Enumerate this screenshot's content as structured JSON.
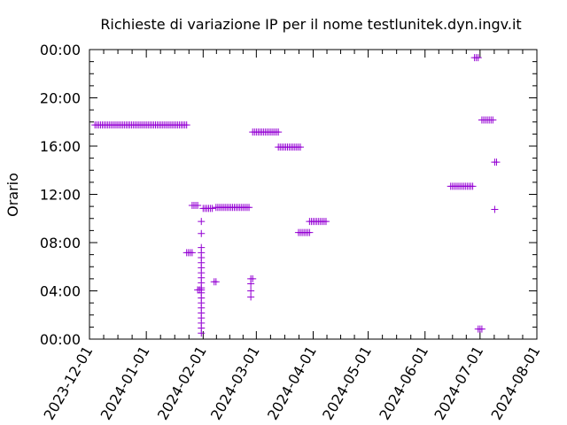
{
  "chart_data": {
    "type": "scatter",
    "title": "Richieste di variazione IP per il nome testlunitek.dyn.ingv.it",
    "xlabel": "",
    "ylabel": "Orario",
    "x_axis_type": "date",
    "xlim": [
      "2023-12-01",
      "2024-08-01"
    ],
    "x_ticks": [
      "2023-12-01",
      "2024-01-01",
      "2024-02-01",
      "2024-03-01",
      "2024-04-01",
      "2024-05-01",
      "2024-06-01",
      "2024-07-01",
      "2024-08-01"
    ],
    "ylim": [
      0,
      24
    ],
    "y_ticks": [
      "00:00",
      "04:00",
      "08:00",
      "12:00",
      "16:00",
      "20:00",
      "00:00"
    ],
    "grid": false,
    "legend": "none",
    "marker": "plus",
    "color": "#9400d3",
    "series": [
      {
        "points": [
          {
            "date": "2023-12-04",
            "time": "17:45"
          },
          {
            "date": "2023-12-05",
            "time": "17:45"
          },
          {
            "date": "2023-12-06",
            "time": "17:45"
          },
          {
            "date": "2023-12-07",
            "time": "17:45"
          },
          {
            "date": "2023-12-08",
            "time": "17:45"
          },
          {
            "date": "2023-12-09",
            "time": "17:45"
          },
          {
            "date": "2023-12-10",
            "time": "17:45"
          },
          {
            "date": "2023-12-11",
            "time": "17:45"
          },
          {
            "date": "2023-12-12",
            "time": "17:45"
          },
          {
            "date": "2023-12-13",
            "time": "17:45"
          },
          {
            "date": "2023-12-14",
            "time": "17:45"
          },
          {
            "date": "2023-12-15",
            "time": "17:45"
          },
          {
            "date": "2023-12-16",
            "time": "17:45"
          },
          {
            "date": "2023-12-17",
            "time": "17:45"
          },
          {
            "date": "2023-12-18",
            "time": "17:45"
          },
          {
            "date": "2023-12-19",
            "time": "17:45"
          },
          {
            "date": "2023-12-20",
            "time": "17:45"
          },
          {
            "date": "2023-12-21",
            "time": "17:45"
          },
          {
            "date": "2023-12-22",
            "time": "17:45"
          },
          {
            "date": "2023-12-23",
            "time": "17:45"
          },
          {
            "date": "2023-12-24",
            "time": "17:45"
          },
          {
            "date": "2023-12-25",
            "time": "17:45"
          },
          {
            "date": "2023-12-26",
            "time": "17:45"
          },
          {
            "date": "2023-12-27",
            "time": "17:45"
          },
          {
            "date": "2023-12-28",
            "time": "17:45"
          },
          {
            "date": "2023-12-29",
            "time": "17:45"
          },
          {
            "date": "2023-12-30",
            "time": "17:45"
          },
          {
            "date": "2023-12-31",
            "time": "17:45"
          },
          {
            "date": "2024-01-01",
            "time": "17:45"
          },
          {
            "date": "2024-01-02",
            "time": "17:45"
          },
          {
            "date": "2024-01-03",
            "time": "17:45"
          },
          {
            "date": "2024-01-04",
            "time": "17:45"
          },
          {
            "date": "2024-01-05",
            "time": "17:45"
          },
          {
            "date": "2024-01-06",
            "time": "17:45"
          },
          {
            "date": "2024-01-07",
            "time": "17:45"
          },
          {
            "date": "2024-01-08",
            "time": "17:45"
          },
          {
            "date": "2024-01-09",
            "time": "17:45"
          },
          {
            "date": "2024-01-10",
            "time": "17:45"
          },
          {
            "date": "2024-01-11",
            "time": "17:45"
          },
          {
            "date": "2024-01-12",
            "time": "17:45"
          },
          {
            "date": "2024-01-13",
            "time": "17:45"
          },
          {
            "date": "2024-01-14",
            "time": "17:45"
          },
          {
            "date": "2024-01-15",
            "time": "17:45"
          },
          {
            "date": "2024-01-16",
            "time": "17:45"
          },
          {
            "date": "2024-01-17",
            "time": "17:45"
          },
          {
            "date": "2024-01-18",
            "time": "17:45"
          },
          {
            "date": "2024-01-19",
            "time": "17:45"
          },
          {
            "date": "2024-01-20",
            "time": "17:45"
          },
          {
            "date": "2024-01-21",
            "time": "17:45"
          },
          {
            "date": "2024-01-22",
            "time": "17:45"
          },
          {
            "date": "2024-01-23",
            "time": "17:45"
          },
          {
            "date": "2024-01-23",
            "time": "07:10"
          },
          {
            "date": "2024-01-24",
            "time": "07:10"
          },
          {
            "date": "2024-01-25",
            "time": "07:10"
          },
          {
            "date": "2024-01-26",
            "time": "07:10"
          },
          {
            "date": "2024-01-26",
            "time": "11:05"
          },
          {
            "date": "2024-01-27",
            "time": "11:05"
          },
          {
            "date": "2024-01-28",
            "time": "11:05"
          },
          {
            "date": "2024-01-29",
            "time": "11:05"
          },
          {
            "date": "2024-01-29",
            "time": "04:05"
          },
          {
            "date": "2024-01-30",
            "time": "04:05"
          },
          {
            "date": "2024-01-31",
            "time": "04:05"
          },
          {
            "date": "2024-01-31",
            "time": "00:30"
          },
          {
            "date": "2024-01-31",
            "time": "00:55"
          },
          {
            "date": "2024-01-31",
            "time": "01:20"
          },
          {
            "date": "2024-01-31",
            "time": "01:45"
          },
          {
            "date": "2024-01-31",
            "time": "02:10"
          },
          {
            "date": "2024-01-31",
            "time": "02:35"
          },
          {
            "date": "2024-01-31",
            "time": "03:00"
          },
          {
            "date": "2024-01-31",
            "time": "03:25"
          },
          {
            "date": "2024-01-31",
            "time": "03:50"
          },
          {
            "date": "2024-01-31",
            "time": "04:15"
          },
          {
            "date": "2024-01-31",
            "time": "04:40"
          },
          {
            "date": "2024-01-31",
            "time": "05:05"
          },
          {
            "date": "2024-01-31",
            "time": "05:30"
          },
          {
            "date": "2024-01-31",
            "time": "05:55"
          },
          {
            "date": "2024-01-31",
            "time": "06:20"
          },
          {
            "date": "2024-01-31",
            "time": "06:45"
          },
          {
            "date": "2024-01-31",
            "time": "07:10"
          },
          {
            "date": "2024-01-31",
            "time": "07:35"
          },
          {
            "date": "2024-01-31",
            "time": "08:45"
          },
          {
            "date": "2024-01-31",
            "time": "09:45"
          },
          {
            "date": "2024-02-01",
            "time": "10:50"
          },
          {
            "date": "2024-02-02",
            "time": "10:50"
          },
          {
            "date": "2024-02-03",
            "time": "10:50"
          },
          {
            "date": "2024-02-04",
            "time": "10:50"
          },
          {
            "date": "2024-02-05",
            "time": "10:50"
          },
          {
            "date": "2024-02-06",
            "time": "10:50"
          },
          {
            "date": "2024-02-07",
            "time": "04:45"
          },
          {
            "date": "2024-02-08",
            "time": "04:45"
          },
          {
            "date": "2024-02-08",
            "time": "10:55"
          },
          {
            "date": "2024-02-09",
            "time": "10:55"
          },
          {
            "date": "2024-02-10",
            "time": "10:55"
          },
          {
            "date": "2024-02-11",
            "time": "10:55"
          },
          {
            "date": "2024-02-12",
            "time": "10:55"
          },
          {
            "date": "2024-02-13",
            "time": "10:55"
          },
          {
            "date": "2024-02-14",
            "time": "10:55"
          },
          {
            "date": "2024-02-15",
            "time": "10:55"
          },
          {
            "date": "2024-02-16",
            "time": "10:55"
          },
          {
            "date": "2024-02-17",
            "time": "10:55"
          },
          {
            "date": "2024-02-18",
            "time": "10:55"
          },
          {
            "date": "2024-02-19",
            "time": "10:55"
          },
          {
            "date": "2024-02-20",
            "time": "10:55"
          },
          {
            "date": "2024-02-21",
            "time": "10:55"
          },
          {
            "date": "2024-02-22",
            "time": "10:55"
          },
          {
            "date": "2024-02-23",
            "time": "10:55"
          },
          {
            "date": "2024-02-24",
            "time": "10:55"
          },
          {
            "date": "2024-02-25",
            "time": "10:55"
          },
          {
            "date": "2024-02-26",
            "time": "10:55"
          },
          {
            "date": "2024-02-27",
            "time": "03:30"
          },
          {
            "date": "2024-02-27",
            "time": "04:00"
          },
          {
            "date": "2024-02-27",
            "time": "04:35"
          },
          {
            "date": "2024-02-27",
            "time": "05:00"
          },
          {
            "date": "2024-02-28",
            "time": "05:00"
          },
          {
            "date": "2024-02-28",
            "time": "17:10"
          },
          {
            "date": "2024-02-29",
            "time": "17:10"
          },
          {
            "date": "2024-03-01",
            "time": "17:10"
          },
          {
            "date": "2024-03-02",
            "time": "17:10"
          },
          {
            "date": "2024-03-03",
            "time": "17:10"
          },
          {
            "date": "2024-03-04",
            "time": "17:10"
          },
          {
            "date": "2024-03-05",
            "time": "17:10"
          },
          {
            "date": "2024-03-06",
            "time": "17:10"
          },
          {
            "date": "2024-03-07",
            "time": "17:10"
          },
          {
            "date": "2024-03-08",
            "time": "17:10"
          },
          {
            "date": "2024-03-09",
            "time": "17:10"
          },
          {
            "date": "2024-03-10",
            "time": "17:10"
          },
          {
            "date": "2024-03-11",
            "time": "17:10"
          },
          {
            "date": "2024-03-12",
            "time": "17:10"
          },
          {
            "date": "2024-03-13",
            "time": "17:10"
          },
          {
            "date": "2024-03-13",
            "time": "15:55"
          },
          {
            "date": "2024-03-14",
            "time": "15:55"
          },
          {
            "date": "2024-03-15",
            "time": "15:55"
          },
          {
            "date": "2024-03-16",
            "time": "15:55"
          },
          {
            "date": "2024-03-17",
            "time": "15:55"
          },
          {
            "date": "2024-03-18",
            "time": "15:55"
          },
          {
            "date": "2024-03-19",
            "time": "15:55"
          },
          {
            "date": "2024-03-20",
            "time": "15:55"
          },
          {
            "date": "2024-03-21",
            "time": "15:55"
          },
          {
            "date": "2024-03-22",
            "time": "15:55"
          },
          {
            "date": "2024-03-23",
            "time": "15:55"
          },
          {
            "date": "2024-03-24",
            "time": "15:55"
          },
          {
            "date": "2024-03-25",
            "time": "15:55"
          },
          {
            "date": "2024-03-24",
            "time": "08:50"
          },
          {
            "date": "2024-03-25",
            "time": "08:50"
          },
          {
            "date": "2024-03-26",
            "time": "08:50"
          },
          {
            "date": "2024-03-27",
            "time": "08:50"
          },
          {
            "date": "2024-03-28",
            "time": "08:50"
          },
          {
            "date": "2024-03-29",
            "time": "08:50"
          },
          {
            "date": "2024-03-30",
            "time": "08:50"
          },
          {
            "date": "2024-03-30",
            "time": "09:45"
          },
          {
            "date": "2024-03-31",
            "time": "09:45"
          },
          {
            "date": "2024-04-01",
            "time": "09:45"
          },
          {
            "date": "2024-04-02",
            "time": "09:45"
          },
          {
            "date": "2024-04-03",
            "time": "09:45"
          },
          {
            "date": "2024-04-04",
            "time": "09:45"
          },
          {
            "date": "2024-04-05",
            "time": "09:45"
          },
          {
            "date": "2024-04-06",
            "time": "09:45"
          },
          {
            "date": "2024-04-07",
            "time": "09:45"
          },
          {
            "date": "2024-04-08",
            "time": "09:45"
          },
          {
            "date": "2024-06-15",
            "time": "12:40"
          },
          {
            "date": "2024-06-16",
            "time": "12:40"
          },
          {
            "date": "2024-06-17",
            "time": "12:40"
          },
          {
            "date": "2024-06-18",
            "time": "12:40"
          },
          {
            "date": "2024-06-19",
            "time": "12:40"
          },
          {
            "date": "2024-06-20",
            "time": "12:40"
          },
          {
            "date": "2024-06-21",
            "time": "12:40"
          },
          {
            "date": "2024-06-22",
            "time": "12:40"
          },
          {
            "date": "2024-06-23",
            "time": "12:40"
          },
          {
            "date": "2024-06-24",
            "time": "12:40"
          },
          {
            "date": "2024-06-25",
            "time": "12:40"
          },
          {
            "date": "2024-06-26",
            "time": "12:40"
          },
          {
            "date": "2024-06-27",
            "time": "12:40"
          },
          {
            "date": "2024-06-28",
            "time": "23:20"
          },
          {
            "date": "2024-06-29",
            "time": "23:20"
          },
          {
            "date": "2024-06-30",
            "time": "23:20"
          },
          {
            "date": "2024-06-30",
            "time": "00:50"
          },
          {
            "date": "2024-07-01",
            "time": "00:50"
          },
          {
            "date": "2024-07-02",
            "time": "00:50"
          },
          {
            "date": "2024-07-02",
            "time": "18:10"
          },
          {
            "date": "2024-07-03",
            "time": "18:10"
          },
          {
            "date": "2024-07-04",
            "time": "18:10"
          },
          {
            "date": "2024-07-05",
            "time": "18:10"
          },
          {
            "date": "2024-07-06",
            "time": "18:10"
          },
          {
            "date": "2024-07-07",
            "time": "18:10"
          },
          {
            "date": "2024-07-08",
            "time": "18:10"
          },
          {
            "date": "2024-07-09",
            "time": "14:40"
          },
          {
            "date": "2024-07-10",
            "time": "14:40"
          },
          {
            "date": "2024-07-09",
            "time": "10:45"
          }
        ]
      }
    ]
  }
}
